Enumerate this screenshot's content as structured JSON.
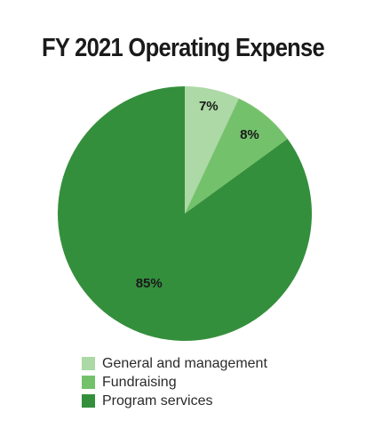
{
  "chart_data": {
    "type": "pie",
    "title": "FY 2021 Operating Expense",
    "categories": [
      "General and management",
      "Fundraising",
      "Program services"
    ],
    "values": [
      7,
      8,
      85
    ],
    "labels": [
      "7%",
      "8%",
      "85%"
    ],
    "colors": [
      "#acd9a5",
      "#74c16c",
      "#348f3c"
    ],
    "legend_position": "bottom"
  }
}
